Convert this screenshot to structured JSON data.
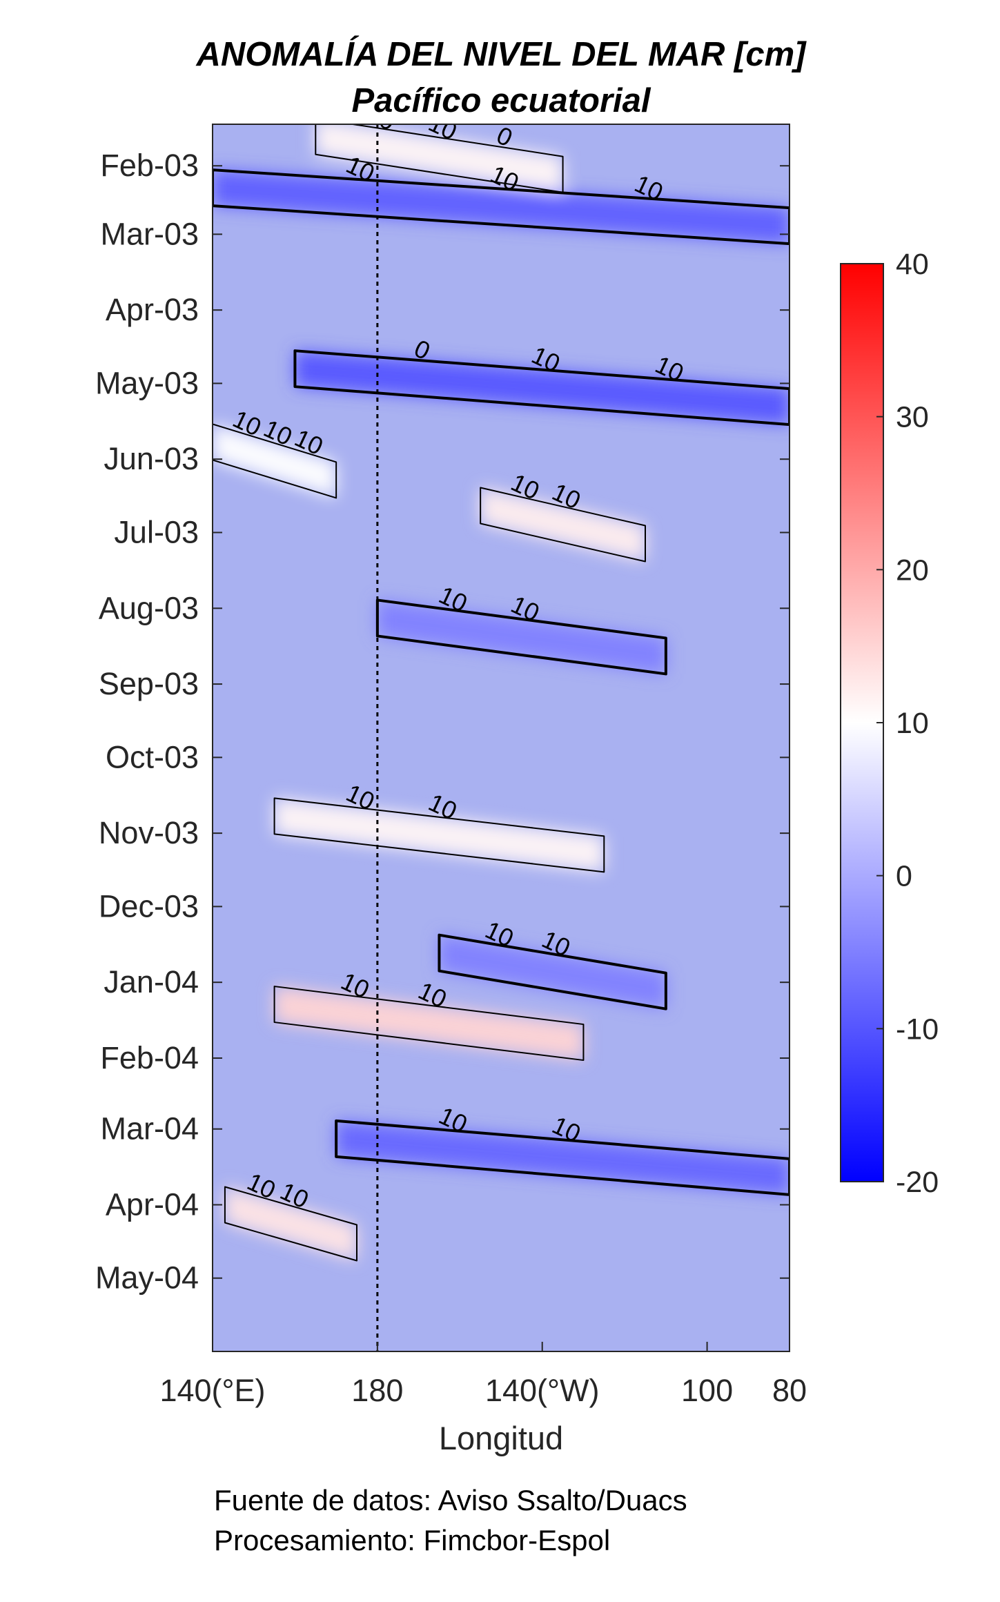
{
  "chart_data": {
    "type": "heatmap",
    "title": "ANOMALÍA DEL NIVEL DEL MAR [cm]",
    "subtitle": "Pacífico ecuatorial",
    "xlabel": "Longitud",
    "ylabel": "",
    "x_ticks": [
      "140(°E)",
      "180",
      "140(°W)",
      "100",
      "80"
    ],
    "x_tick_values": [
      140,
      180,
      220,
      260,
      280
    ],
    "xlim": [
      140,
      280
    ],
    "y_ticks": [
      "Feb-03",
      "Mar-03",
      "Apr-03",
      "May-03",
      "Jun-03",
      "Jul-03",
      "Aug-03",
      "Sep-03",
      "Oct-03",
      "Nov-03",
      "Dec-03",
      "Jan-04",
      "Feb-04",
      "Mar-04",
      "Apr-04",
      "May-04"
    ],
    "ylim": [
      "2003-01-15",
      "2004-05-31"
    ],
    "colorbar": {
      "ticks": [
        "40",
        "30",
        "20",
        "10",
        "0",
        "-10",
        "-20"
      ],
      "tick_values": [
        40,
        30,
        20,
        10,
        0,
        -10,
        -20
      ],
      "range": [
        -20,
        40
      ],
      "colors": [
        "#0000ff",
        "#ffffff",
        "#ff0000"
      ]
    },
    "reference_line": {
      "x": 180,
      "style": "dashed"
    },
    "contour_levels": [
      0,
      10
    ],
    "contour_labels": [
      "10",
      "10",
      "0",
      "10",
      "10",
      "10",
      "10",
      "10",
      "10",
      "10",
      "10",
      "10",
      "10",
      "10",
      "10",
      "10",
      "10",
      "10",
      "10",
      "10",
      "10",
      "10",
      "0",
      "10",
      "10",
      "10"
    ],
    "bands": [
      {
        "date": "2003-01-20",
        "lon_from": 165,
        "lon_to": 225,
        "value": 11
      },
      {
        "date": "2003-02-10",
        "lon_from": 140,
        "lon_to": 280,
        "value": -9
      },
      {
        "date": "2003-04-25",
        "lon_from": 160,
        "lon_to": 280,
        "value": -10
      },
      {
        "date": "2003-05-25",
        "lon_from": 140,
        "lon_to": 170,
        "value": 10
      },
      {
        "date": "2003-06-20",
        "lon_from": 205,
        "lon_to": 245,
        "value": 12
      },
      {
        "date": "2003-08-05",
        "lon_from": 180,
        "lon_to": 250,
        "value": -5
      },
      {
        "date": "2003-10-25",
        "lon_from": 155,
        "lon_to": 235,
        "value": 11
      },
      {
        "date": "2003-12-20",
        "lon_from": 195,
        "lon_to": 250,
        "value": -5
      },
      {
        "date": "2004-01-10",
        "lon_from": 155,
        "lon_to": 230,
        "value": 15
      },
      {
        "date": "2004-03-05",
        "lon_from": 170,
        "lon_to": 280,
        "value": -8
      },
      {
        "date": "2004-04-01",
        "lon_from": 143,
        "lon_to": 175,
        "value": 13
      }
    ]
  },
  "footer": {
    "source_line": "Fuente de datos: Aviso Ssalto/Duacs",
    "processing_line": "Procesamiento: Fimcbor-Espol"
  }
}
